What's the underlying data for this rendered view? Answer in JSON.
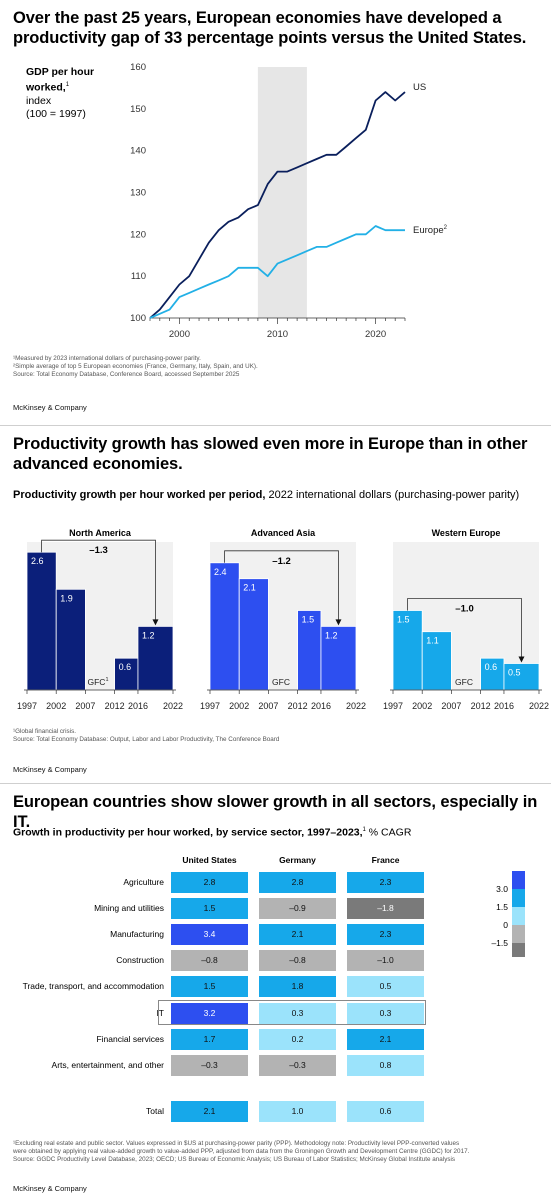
{
  "panel1": {
    "title": "Over the past 25 years, European economies have developed a productivity gap of 33 percentage points versus the United States.",
    "ylabel_bold": "GDP per hour worked,",
    "ylabel_sup": "1",
    "ylabel_rest1": "index",
    "ylabel_rest2": "(100 = 1997)",
    "footnotes": "¹Measured by 2023 international dollars of purchasing-power parity.\n²Simple average of top 5 European economies (France, Germany, Italy, Spain, and UK).\n Source: Total Economy Database, Conference Board, accessed September 2025",
    "brand": "McKinsey & Company"
  },
  "panel2": {
    "title": "Productivity growth has slowed even more in Europe than in other advanced economies.",
    "subtitle_bold": "Productivity growth per hour worked per period,",
    "subtitle_rest": " 2022 international dollars (purchasing-power parity)",
    "footnotes": "¹Global financial crisis.\n Source: Total Economy Database: Output, Labor and Labor Productivity, The Conference Board",
    "brand": "McKinsey & Company"
  },
  "panel3": {
    "title": "European countries show slower growth in all sectors, especially in IT.",
    "subtitle_bold": "Growth in productivity per hour worked, by service sector, 1997–2023,",
    "subtitle_sup": "1",
    "subtitle_rest": " % CAGR",
    "footnotes": "¹Excluding real estate and public sector. Values expressed in $US at purchasing-power parity (PPP). Methodology note: Productivity level PPP-converted values\n were obtained by applying real value-added growth to value-added PPP, adjusted from data from the Groningen Growth and Development Centre (GGDC) for 2017.\n Source: GGDC Productivity Level Database, 2023; OECD; US Bureau of Economic Analysis; US Bureau of Labor Statistics; McKinsey Global Institute analysis",
    "brand": "McKinsey & Company"
  },
  "colors": {
    "us_line": "#0a1f5c",
    "europe_line": "#22b0e6",
    "shade": "#e6e6e6",
    "na_bar": "#0b1f7a",
    "asia_bar": "#2d4ff0",
    "eu_bar": "#16a8ea",
    "heat_high": "#2d4ff0",
    "heat_mid": "#16a8ea",
    "heat_low": "#9be3fb",
    "heat_neg": "#b3b3b3",
    "heat_vneg": "#7a7a7a"
  },
  "chart_data": [
    {
      "type": "line",
      "title": "Over the past 25 years, European economies have developed a productivity gap of 33 percentage points versus the United States.",
      "ylabel": "GDP per hour worked, index (100 = 1997)",
      "ylim": [
        100,
        160
      ],
      "yticks": [
        "100",
        "110",
        "120",
        "130",
        "140",
        "150",
        "160"
      ],
      "xlim": [
        1997,
        2023
      ],
      "xticks": [
        2000,
        2010,
        2020
      ],
      "xtick_labels": [
        "2000",
        "2010",
        "2020"
      ],
      "shaded_period": [
        2008,
        2013
      ],
      "grid": false,
      "legend": "inline-right",
      "series": [
        {
          "name": "US",
          "x": [
            1997,
            1998,
            1999,
            2000,
            2001,
            2002,
            2003,
            2004,
            2005,
            2006,
            2007,
            2008,
            2009,
            2010,
            2011,
            2012,
            2013,
            2014,
            2015,
            2016,
            2017,
            2018,
            2019,
            2020,
            2021,
            2022,
            2023
          ],
          "y": [
            100,
            102,
            105,
            108,
            110,
            114,
            118,
            121,
            123,
            124,
            126,
            127,
            132,
            135,
            135,
            136,
            137,
            138,
            139,
            139,
            141,
            143,
            145,
            152,
            154,
            152,
            154
          ]
        },
        {
          "name": "Europe",
          "name_sup": "2",
          "x": [
            1997,
            1998,
            1999,
            2000,
            2001,
            2002,
            2003,
            2004,
            2005,
            2006,
            2007,
            2008,
            2009,
            2010,
            2011,
            2012,
            2013,
            2014,
            2015,
            2016,
            2017,
            2018,
            2019,
            2020,
            2021,
            2022,
            2023
          ],
          "y": [
            100,
            101,
            102,
            105,
            106,
            107,
            108,
            109,
            110,
            112,
            112,
            112,
            110,
            113,
            114,
            115,
            116,
            117,
            117,
            118,
            119,
            120,
            120,
            122,
            121,
            121,
            121
          ]
        }
      ]
    },
    {
      "type": "bar",
      "title": "Productivity growth per hour worked per period, 2022 international dollars (purchasing-power parity)",
      "xtick_labels": [
        "1997",
        "2002",
        "2007",
        "2012",
        "2016",
        "2022"
      ],
      "gap_label": "GFC",
      "groups": [
        {
          "name": "North America",
          "values": [
            2.6,
            1.9,
            0.6,
            1.2
          ],
          "value_labels": [
            "2.6",
            "1.9",
            "0.6",
            "1.2"
          ],
          "change": "–1.3",
          "gap_sup": "1"
        },
        {
          "name": "Advanced Asia",
          "values": [
            2.4,
            2.1,
            1.5,
            1.2
          ],
          "value_labels": [
            "2.4",
            "2.1",
            "1.5",
            "1.2"
          ],
          "change": "–1.2",
          "gap_sup": ""
        },
        {
          "name": "Western Europe",
          "values": [
            1.5,
            1.1,
            0.6,
            0.5
          ],
          "value_labels": [
            "1.5",
            "1.1",
            "0.6",
            "0.5"
          ],
          "change": "–1.0",
          "gap_sup": ""
        }
      ]
    },
    {
      "type": "heatmap",
      "title": "Growth in productivity per hour worked, by service sector, 1997–2023, % CAGR",
      "columns": [
        "United States",
        "Germany",
        "France"
      ],
      "rows": [
        {
          "name": "Agriculture",
          "values": [
            "2.8",
            "2.8",
            "2.3"
          ]
        },
        {
          "name": "Mining and utilities",
          "values": [
            "1.5",
            "–0.9",
            "–1.8"
          ]
        },
        {
          "name": "Manufacturing",
          "values": [
            "3.4",
            "2.1",
            "2.3"
          ]
        },
        {
          "name": "Construction",
          "values": [
            "–0.8",
            "–0.8",
            "–1.0"
          ]
        },
        {
          "name": "Trade, transport, and accommodation",
          "values": [
            "1.5",
            "1.8",
            "0.5"
          ]
        },
        {
          "name": "IT",
          "values": [
            "3.2",
            "0.3",
            "0.3"
          ],
          "highlight": true
        },
        {
          "name": "Financial services",
          "values": [
            "1.7",
            "0.2",
            "2.1"
          ]
        },
        {
          "name": "Arts, entertainment, and other",
          "values": [
            "–0.3",
            "–0.3",
            "0.8"
          ]
        }
      ],
      "total": {
        "name": "Total",
        "values": [
          "2.1",
          "1.0",
          "0.6"
        ]
      },
      "legend": {
        "position": "right",
        "labels": [
          "3.0",
          "1.5",
          "0",
          "–1.5"
        ]
      }
    }
  ]
}
